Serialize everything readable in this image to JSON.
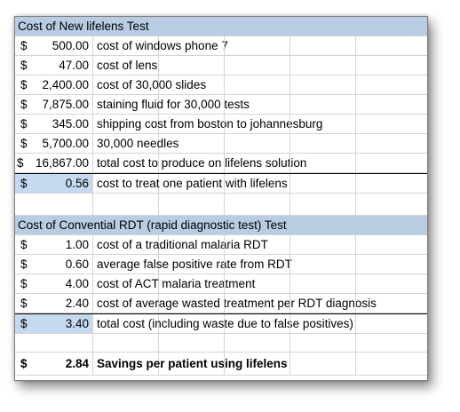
{
  "section1": {
    "header": "Cost of New lifelens Test",
    "rows": [
      {
        "cur": "$",
        "amount": "500.00",
        "desc": "cost of windows phone 7"
      },
      {
        "cur": "$",
        "amount": "47.00",
        "desc": "cost of lens"
      },
      {
        "cur": "$",
        "amount": "2,400.00",
        "desc": "cost of 30,000 slides"
      },
      {
        "cur": "$",
        "amount": "7,875.00",
        "desc": "staining fluid for 30,000 tests"
      },
      {
        "cur": "$",
        "amount": "345.00",
        "desc": "shipping cost from boston to johannesburg"
      },
      {
        "cur": "$",
        "amount": "5,700.00",
        "desc": "30,000 needles"
      },
      {
        "cur": "$",
        "amount": "16,867.00",
        "desc": "total cost to produce on lifelens solution"
      }
    ],
    "per_patient": {
      "cur": "$",
      "amount": "0.56",
      "desc": "cost to treat one patient with lifelens"
    }
  },
  "section2": {
    "header": "Cost of Convential RDT (rapid diagnostic test) Test",
    "rows": [
      {
        "cur": "$",
        "amount": "1.00",
        "desc": "cost of a traditional malaria RDT"
      },
      {
        "cur": "$",
        "amount": "0.60",
        "desc": "average false positive rate from RDT"
      },
      {
        "cur": "$",
        "amount": "4.00",
        "desc": "cost of ACT malaria treatment"
      },
      {
        "cur": "$",
        "amount": "2.40",
        "desc": "cost of average wasted treatment per RDT diagnosis"
      }
    ],
    "total": {
      "cur": "$",
      "amount": "3.40",
      "desc": "total cost  (including waste due to false positives)"
    }
  },
  "savings": {
    "cur": "$",
    "amount": "2.84",
    "desc": "Savings per patient using lifelens"
  },
  "colors": {
    "header_fill": "#b8cce4",
    "selected_fill": "#c5d9f1",
    "gridline": "#d4d4d4"
  }
}
